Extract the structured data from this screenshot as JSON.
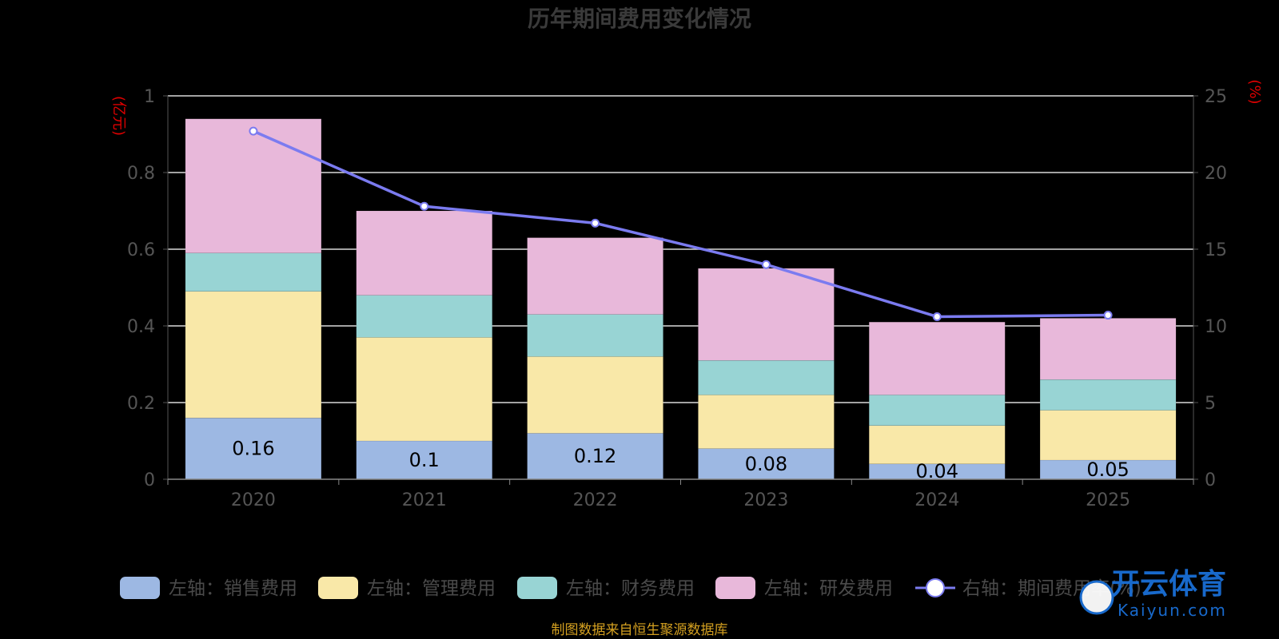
{
  "chart_data": {
    "type": "bar",
    "stacked": true,
    "title": "历年期间费用变化情况",
    "categories": [
      "2020",
      "2021",
      "2022",
      "2023",
      "2024",
      "2025"
    ],
    "left_axis": {
      "unit": "(亿元)",
      "range": [
        0,
        1
      ],
      "ticks": [
        "0",
        "0.2",
        "0.4",
        "0.6",
        "0.8",
        "1"
      ]
    },
    "right_axis": {
      "unit": "(%)",
      "range": [
        0,
        25
      ],
      "ticks": [
        "0",
        "5",
        "10",
        "15",
        "20",
        "25"
      ]
    },
    "series": [
      {
        "name": "左轴：销售费用",
        "color": "#9db8e3",
        "values": [
          0.16,
          0.1,
          0.12,
          0.08,
          0.04,
          0.05
        ]
      },
      {
        "name": "左轴：管理费用",
        "color": "#f9e8a8",
        "values": [
          0.33,
          0.27,
          0.2,
          0.14,
          0.1,
          0.13
        ]
      },
      {
        "name": "左轴：财务费用",
        "color": "#98d4d4",
        "values": [
          0.1,
          0.11,
          0.11,
          0.09,
          0.08,
          0.08
        ]
      },
      {
        "name": "左轴：研发费用",
        "color": "#e8b8da",
        "values": [
          0.35,
          0.22,
          0.2,
          0.24,
          0.19,
          0.16
        ]
      }
    ],
    "bar_labels": [
      "0.16",
      "0.1",
      "0.12",
      "0.08",
      "0.04",
      "0.05"
    ],
    "line_series": {
      "name": "右轴：期间费用率(%)",
      "color": "#7b7bf0",
      "values": [
        22.7,
        17.8,
        16.7,
        14.0,
        10.6,
        10.7
      ]
    },
    "grid": true,
    "legend_position": "bottom"
  },
  "source_text": "制图数据来自恒生聚源数据库",
  "watermark": {
    "text": "开云体育",
    "sub": "Kaiyun.com"
  }
}
